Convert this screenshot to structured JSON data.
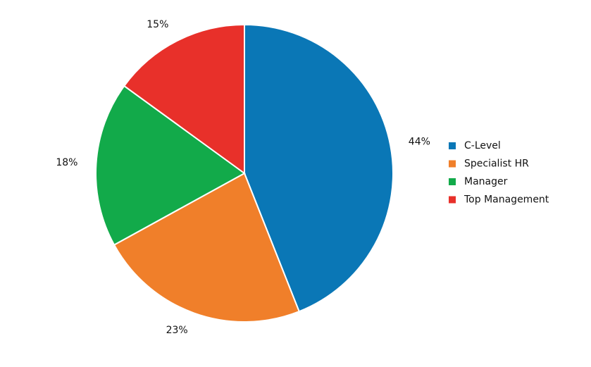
{
  "chart_data": {
    "type": "pie",
    "categories": [
      "C-Level",
      "Specialist HR",
      "Manager",
      "Top Management"
    ],
    "values": [
      44,
      23,
      18,
      15
    ],
    "value_labels": [
      "44%",
      "23%",
      "18%",
      "15%"
    ],
    "colors": [
      "#0a77b6",
      "#f07f2a",
      "#12aa4a",
      "#e8302a"
    ],
    "legend": "right"
  }
}
